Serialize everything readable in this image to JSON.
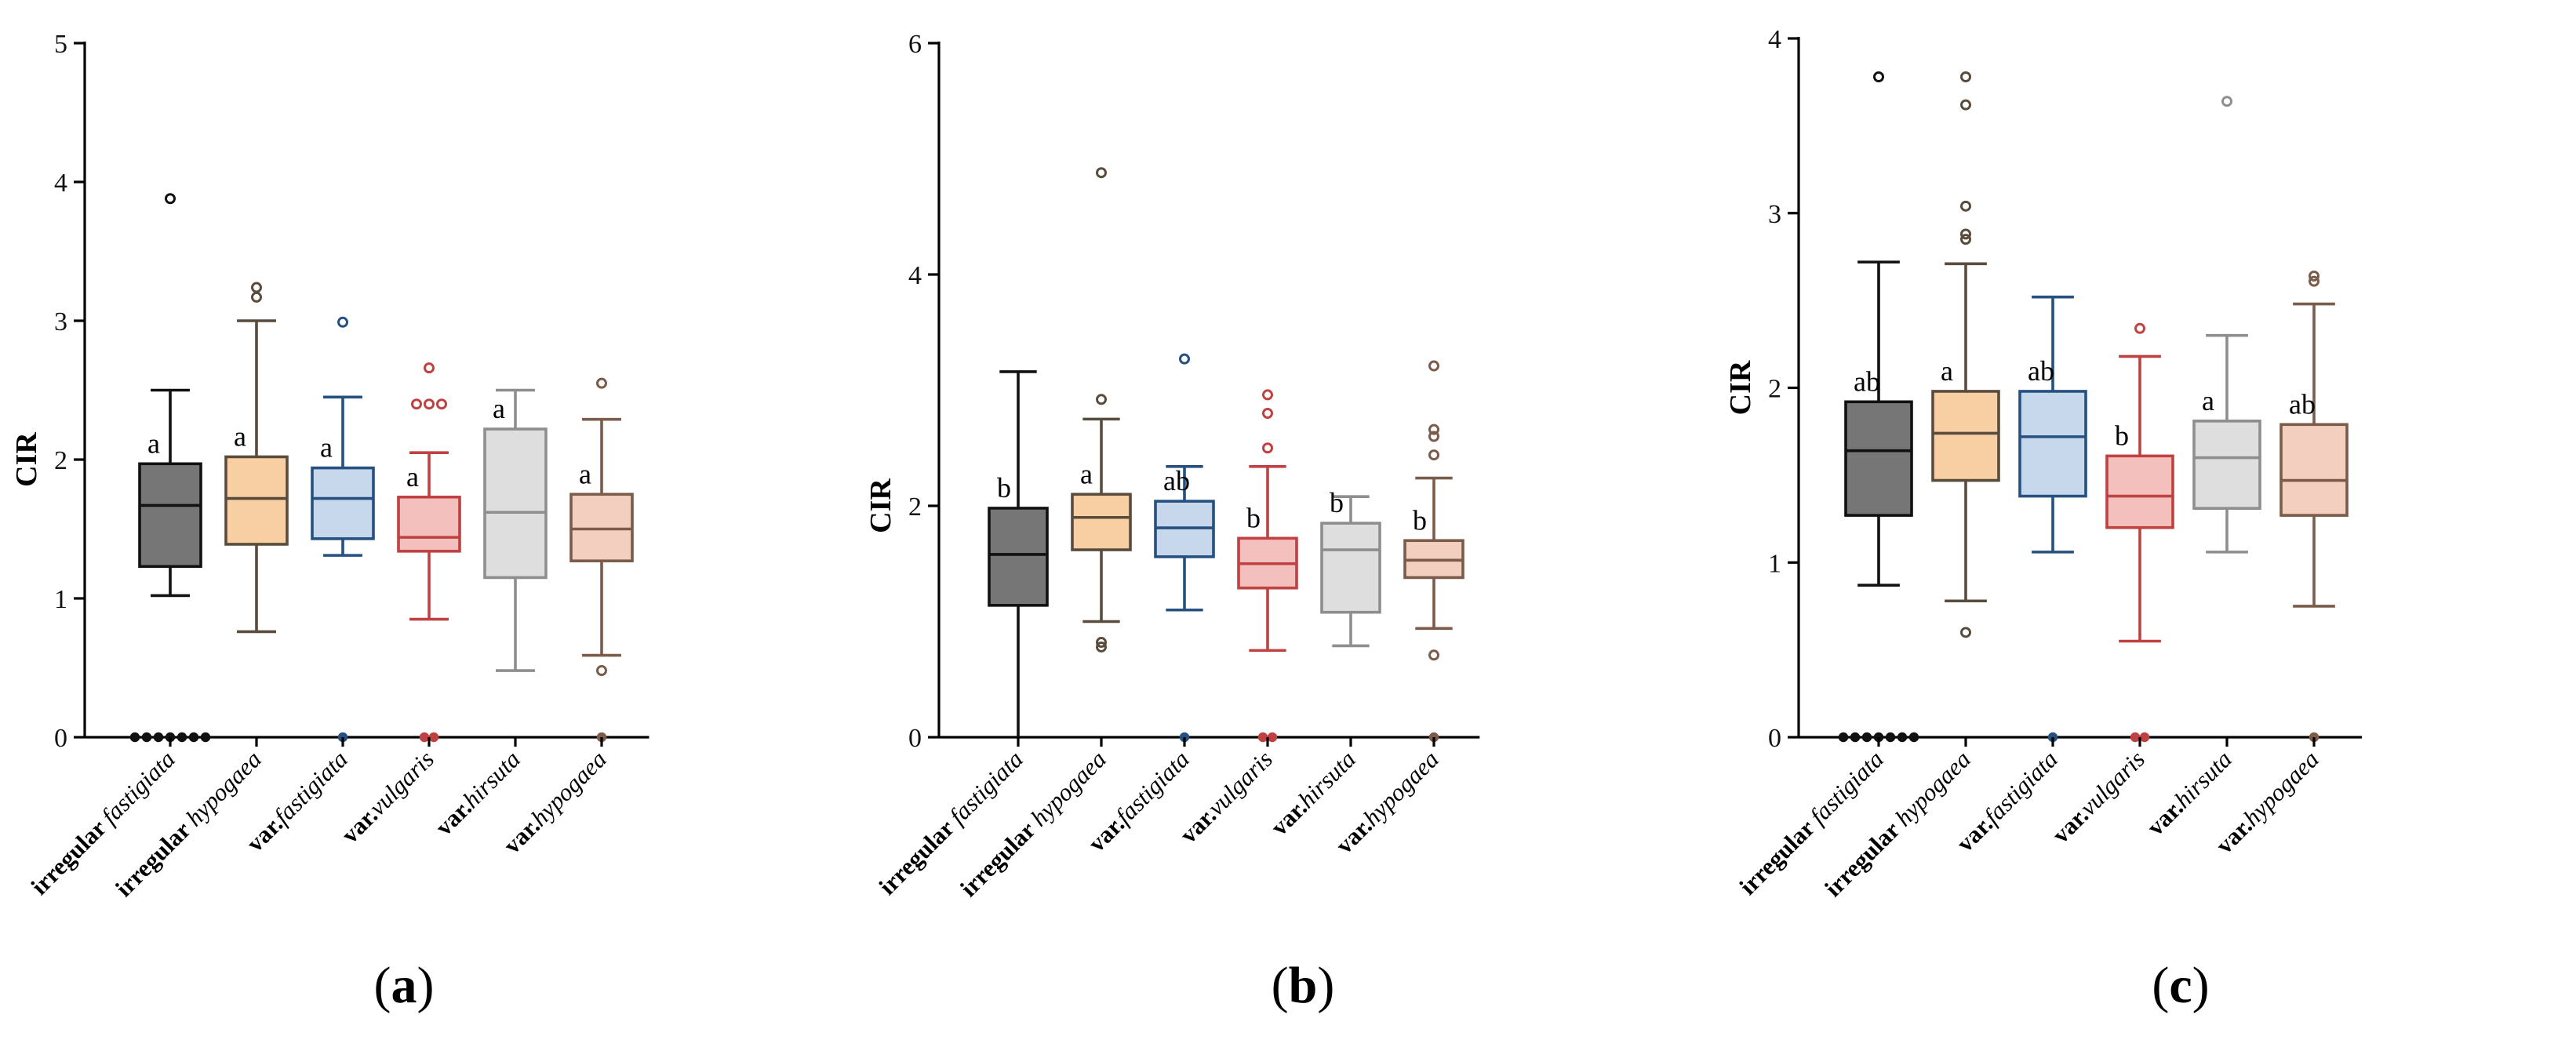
{
  "colors": {
    "irregular_fastigiata": {
      "fill": "#767676",
      "stroke": "#111111"
    },
    "irregular_hypogaea": {
      "fill": "#f7cfa2",
      "stroke": "#5a4c3d"
    },
    "var_fastigiata": {
      "fill": "#c8d8ec",
      "stroke": "#26507f"
    },
    "var_vulgaris": {
      "fill": "#f3c0bd",
      "stroke": "#bf4141"
    },
    "var_hirsuta": {
      "fill": "#dedede",
      "stroke": "#8e8e8e"
    },
    "var_hypogaea": {
      "fill": "#f2cfbf",
      "stroke": "#7b5b4a"
    }
  },
  "categories": [
    {
      "key": "irregular_fastigiata",
      "prefix": "irregular ",
      "name": "fastigiata"
    },
    {
      "key": "irregular_hypogaea",
      "prefix": "irregular ",
      "name": "hypogaea"
    },
    {
      "key": "var_fastigiata",
      "prefix": "var.",
      "name": "fastigiata"
    },
    {
      "key": "var_vulgaris",
      "prefix": "var.",
      "name": "vulgaris"
    },
    {
      "key": "var_hirsuta",
      "prefix": "var.",
      "name": "hirsuta"
    },
    {
      "key": "var_hypogaea",
      "prefix": "var.",
      "name": "hypogaea"
    }
  ],
  "chart_data": [
    {
      "type": "box",
      "panel_label": "a",
      "title": "",
      "ylabel": "CIR",
      "xlabel": "",
      "ylim": [
        0,
        5
      ],
      "yticks": [
        0,
        1,
        2,
        3,
        4,
        5
      ],
      "boxes": [
        {
          "category": "irregular fastigiata",
          "whisker_low": 1.02,
          "q1": 1.23,
          "median": 1.67,
          "q3": 1.97,
          "whisker_high": 2.5,
          "outliers": [
            3.88,
            0,
            0,
            0,
            0,
            0,
            0,
            0
          ],
          "letter": "a"
        },
        {
          "category": "irregular hypogaea",
          "whisker_low": 0.76,
          "q1": 1.39,
          "median": 1.72,
          "q3": 2.02,
          "whisker_high": 3.0,
          "outliers": [
            3.24,
            3.17
          ],
          "letter": "a"
        },
        {
          "category": "var.fastigiata",
          "whisker_low": 1.31,
          "q1": 1.43,
          "median": 1.72,
          "q3": 1.94,
          "whisker_high": 2.45,
          "outliers": [
            2.99,
            0
          ],
          "letter": "a"
        },
        {
          "category": "var.vulgaris",
          "whisker_low": 0.85,
          "q1": 1.34,
          "median": 1.44,
          "q3": 1.73,
          "whisker_high": 2.05,
          "outliers": [
            2.66,
            2.4,
            2.4,
            2.4,
            0,
            0
          ],
          "letter": "a"
        },
        {
          "category": "var.hirsuta",
          "whisker_low": 0.48,
          "q1": 1.15,
          "median": 1.62,
          "q3": 2.22,
          "whisker_high": 2.5,
          "outliers": [],
          "letter": "a"
        },
        {
          "category": "var.hypogaea",
          "whisker_low": 0.59,
          "q1": 1.27,
          "median": 1.5,
          "q3": 1.75,
          "whisker_high": 2.29,
          "outliers": [
            2.55,
            0.48,
            0
          ],
          "letter": "a"
        }
      ]
    },
    {
      "type": "box",
      "panel_label": "b",
      "title": "",
      "ylabel": "CIR",
      "xlabel": "",
      "ylim": [
        0,
        6
      ],
      "yticks": [
        0,
        2,
        4,
        6
      ],
      "boxes": [
        {
          "category": "irregular fastigiata",
          "whisker_low": 0.0,
          "q1": 1.14,
          "median": 1.58,
          "q3": 1.98,
          "whisker_high": 3.16,
          "outliers": [],
          "letter": "b"
        },
        {
          "category": "irregular hypogaea",
          "whisker_low": 1.0,
          "q1": 1.62,
          "median": 1.9,
          "q3": 2.1,
          "whisker_high": 2.75,
          "outliers": [
            4.88,
            2.92,
            0.82,
            0.78
          ],
          "letter": "a"
        },
        {
          "category": "var.fastigiata",
          "whisker_low": 1.1,
          "q1": 1.56,
          "median": 1.81,
          "q3": 2.04,
          "whisker_high": 2.34,
          "outliers": [
            3.27,
            0
          ],
          "letter": "ab"
        },
        {
          "category": "var.vulgaris",
          "whisker_low": 0.75,
          "q1": 1.29,
          "median": 1.5,
          "q3": 1.72,
          "whisker_high": 2.34,
          "outliers": [
            2.96,
            2.8,
            2.5,
            0,
            0
          ],
          "letter": "b"
        },
        {
          "category": "var.hirsuta",
          "whisker_low": 0.79,
          "q1": 1.08,
          "median": 1.62,
          "q3": 1.85,
          "whisker_high": 2.08,
          "outliers": [],
          "letter": "b"
        },
        {
          "category": "var.hypogaea",
          "whisker_low": 0.94,
          "q1": 1.38,
          "median": 1.53,
          "q3": 1.7,
          "whisker_high": 2.24,
          "outliers": [
            3.21,
            2.66,
            2.6,
            2.44,
            0.71,
            0
          ],
          "letter": "b"
        }
      ]
    },
    {
      "type": "box",
      "panel_label": "c",
      "title": "",
      "ylabel": "CIR",
      "xlabel": "",
      "ylim": [
        0,
        4
      ],
      "yticks": [
        0,
        1,
        2,
        3,
        4
      ],
      "boxes": [
        {
          "category": "irregular fastigiata",
          "whisker_low": 0.87,
          "q1": 1.27,
          "median": 1.64,
          "q3": 1.92,
          "whisker_high": 2.72,
          "outliers": [
            3.78,
            0,
            0,
            0,
            0,
            0,
            0,
            0
          ],
          "letter": "ab"
        },
        {
          "category": "irregular hypogaea",
          "whisker_low": 0.78,
          "q1": 1.47,
          "median": 1.74,
          "q3": 1.98,
          "whisker_high": 2.71,
          "outliers": [
            3.78,
            3.62,
            3.04,
            2.88,
            2.85,
            0.6
          ],
          "letter": "a"
        },
        {
          "category": "var.fastigiata",
          "whisker_low": 1.06,
          "q1": 1.38,
          "median": 1.72,
          "q3": 1.98,
          "whisker_high": 2.52,
          "outliers": [
            0
          ],
          "letter": "ab"
        },
        {
          "category": "var.vulgaris",
          "whisker_low": 0.55,
          "q1": 1.2,
          "median": 1.38,
          "q3": 1.61,
          "whisker_high": 2.18,
          "outliers": [
            2.34,
            0,
            0
          ],
          "letter": "b"
        },
        {
          "category": "var.hirsuta",
          "whisker_low": 1.06,
          "q1": 1.31,
          "median": 1.6,
          "q3": 1.81,
          "whisker_high": 2.3,
          "outliers": [
            3.64
          ],
          "letter": "a"
        },
        {
          "category": "var.hypogaea",
          "whisker_low": 0.75,
          "q1": 1.27,
          "median": 1.47,
          "q3": 1.79,
          "whisker_high": 2.48,
          "outliers": [
            2.64,
            2.61,
            0
          ],
          "letter": "ab"
        }
      ]
    }
  ]
}
